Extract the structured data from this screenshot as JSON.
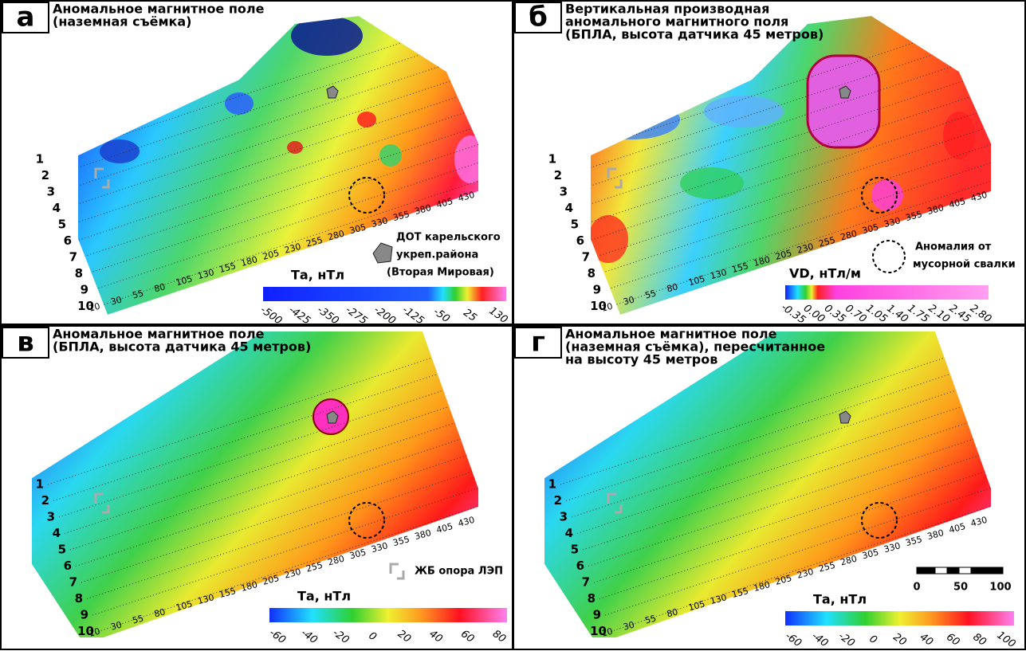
{
  "panels": [
    {
      "letter": "а",
      "title": [
        "Аномальное магнитное поле",
        "(наземная съёмка)"
      ],
      "lines": [
        "1",
        "2",
        "3",
        "4",
        "5",
        "6",
        "7",
        "8",
        "9",
        "10"
      ],
      "pickets": [
        "10",
        "30",
        "55",
        "80",
        "105",
        "130",
        "155",
        "180",
        "205",
        "230",
        "255",
        "280",
        "305",
        "330",
        "355",
        "380",
        "405",
        "430"
      ],
      "colorbar": {
        "title": "Та, нТл",
        "ticks": [
          "-500",
          "-425",
          "-350",
          "-275",
          "-200",
          "-125",
          "-50",
          "25",
          "130"
        ]
      },
      "legend": [
        "ДОТ карельского",
        "укреп.района",
        "(Вторая Мировая)"
      ]
    },
    {
      "letter": "б",
      "title": [
        "Вертикальная производная",
        "аномального магнитного поля",
        "(БПЛА, высота датчика 45 метров)"
      ],
      "lines": [
        "1",
        "2",
        "3",
        "4",
        "5",
        "6",
        "7",
        "8",
        "9",
        "10"
      ],
      "pickets": [
        "10",
        "30",
        "55",
        "80",
        "105",
        "130",
        "155",
        "180",
        "205",
        "230",
        "255",
        "280",
        "305",
        "330",
        "355",
        "380",
        "405",
        "430"
      ],
      "colorbar": {
        "title": "VD, нТл/м",
        "ticks": [
          "-0.35",
          "0.00",
          "0.35",
          "0.70",
          "1.05",
          "1.40",
          "1.75",
          "2.10",
          "2.45",
          "2.80"
        ]
      },
      "legend": [
        "Аномалия от",
        "мусорной свалки"
      ]
    },
    {
      "letter": "в",
      "title": [
        "Аномальное магнитное поле",
        "(БПЛА, высота датчика 45 метров)"
      ],
      "lines": [
        "1",
        "2",
        "3",
        "4",
        "5",
        "6",
        "7",
        "8",
        "9",
        "10"
      ],
      "pickets": [
        "10",
        "30",
        "55",
        "80",
        "105",
        "130",
        "155",
        "180",
        "205",
        "230",
        "255",
        "280",
        "305",
        "330",
        "355",
        "380",
        "405",
        "430"
      ],
      "colorbar": {
        "title": "Та, нТл",
        "ticks": [
          "-60",
          "-40",
          "-20",
          "0",
          "20",
          "40",
          "60",
          "80"
        ]
      },
      "legend": [
        "ЖБ опора ЛЭП"
      ]
    },
    {
      "letter": "г",
      "title": [
        "Аномальное магнитное поле",
        "(наземная съёмка), пересчитанное",
        "на высоту 45 метров"
      ],
      "lines": [
        "1",
        "2",
        "3",
        "4",
        "5",
        "6",
        "7",
        "8",
        "9",
        "10"
      ],
      "pickets": [
        "10",
        "30",
        "55",
        "80",
        "105",
        "130",
        "155",
        "180",
        "205",
        "230",
        "255",
        "280",
        "305",
        "330",
        "355",
        "380",
        "405",
        "430"
      ],
      "colorbar": {
        "title": "Та, нТл",
        "ticks": [
          "-60",
          "-40",
          "-20",
          "0",
          "20",
          "40",
          "60",
          "80",
          "100"
        ]
      },
      "scale": [
        "0",
        "50",
        "100"
      ]
    }
  ]
}
